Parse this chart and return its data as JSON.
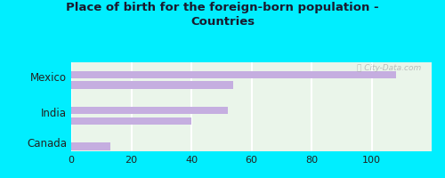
{
  "title": "Place of birth for the foreign-born population -\nCountries",
  "categories": [
    "Mexico",
    "India",
    "Canada"
  ],
  "bar_pairs": [
    [
      108,
      54
    ],
    [
      52,
      40
    ],
    [
      13,
      null
    ]
  ],
  "bar_color": "#c5aee0",
  "background_outer": "#00eeff",
  "background_inner": "#eaf5ea",
  "grid_color": "#ffffff",
  "text_color": "#222222",
  "xlim": [
    0,
    120
  ],
  "xticks": [
    0,
    20,
    40,
    60,
    80,
    100
  ],
  "watermark": "ⓘ City-Data.com",
  "title_color": "#1a1a2e"
}
